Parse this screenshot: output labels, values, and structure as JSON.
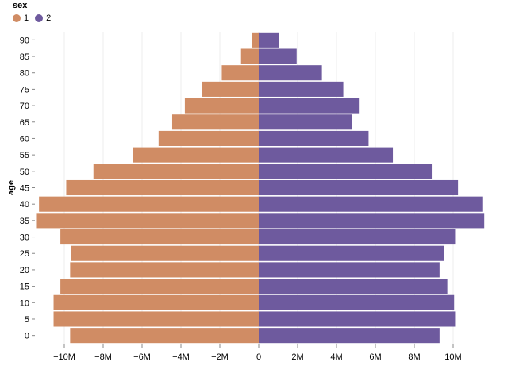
{
  "chart_data": {
    "type": "bar",
    "orientation": "horizontal-diverging",
    "title": "",
    "xlabel": "",
    "ylabel": "age",
    "legend": {
      "title": "sex",
      "placement": "top-left",
      "entries": [
        {
          "label": "1",
          "color": "#d08c64"
        },
        {
          "label": "2",
          "color": "#6e5a9e"
        }
      ]
    },
    "categories": [
      0,
      5,
      10,
      15,
      20,
      25,
      30,
      35,
      40,
      45,
      50,
      55,
      60,
      65,
      70,
      75,
      80,
      85,
      90
    ],
    "series": [
      {
        "name": "1",
        "color": "#d08c64",
        "values": [
          9.7,
          10.55,
          10.55,
          10.2,
          9.7,
          9.65,
          10.2,
          11.45,
          11.3,
          9.9,
          8.5,
          6.45,
          5.15,
          4.45,
          3.8,
          2.9,
          1.9,
          0.95,
          0.35
        ]
      },
      {
        "name": "2",
        "color": "#6e5a9e",
        "values": [
          9.3,
          10.1,
          10.05,
          9.7,
          9.3,
          9.55,
          10.1,
          11.6,
          11.5,
          10.25,
          8.9,
          6.9,
          5.65,
          4.8,
          5.15,
          4.35,
          3.25,
          1.95,
          1.05
        ]
      }
    ],
    "value_unit": "M",
    "xlim": [
      -11.6,
      11.6
    ],
    "x_ticks": [
      -10,
      -8,
      -6,
      -4,
      -2,
      0,
      2,
      4,
      6,
      8,
      10
    ],
    "x_tick_labels": [
      "−10M",
      "−8M",
      "−6M",
      "−4M",
      "−2M",
      "0",
      "2M",
      "4M",
      "6M",
      "8M",
      "10M"
    ],
    "grid": true
  }
}
